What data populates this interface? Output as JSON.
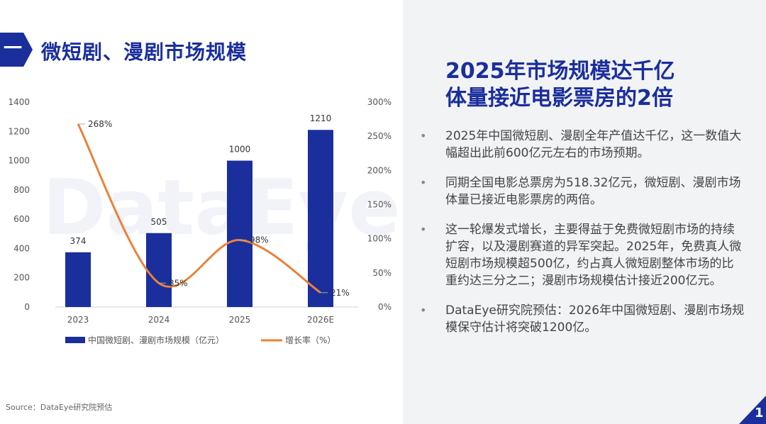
{
  "page": {
    "badge": "一",
    "title": "微短剧、漫剧市场规模",
    "source": "Source：DataEye研究院预估",
    "page_number": "1"
  },
  "watermark": "DataEye",
  "headline": {
    "line1": "2025年市场规模达千亿",
    "line2": "体量接近电影票房的2倍"
  },
  "bullets": [
    {
      "symbol": "•",
      "text": "2025年中国微短剧、漫剧全年产值达千亿，这一数值大幅超出此前600亿元左右的市场预期。"
    },
    {
      "symbol": "•",
      "text": "同期全国电影总票房为518.32亿元，微短剧、漫剧市场体量已接近电影票房的两倍。"
    },
    {
      "symbol": "•",
      "text": "这一轮爆发式增长，主要得益于免费微短剧市场的持续扩容，以及漫剧赛道的异军突起。2025年，免费真人微短剧市场规模超500亿，约占真人微短剧整体市场的比重约达三分之二；漫剧市场规模估计接近200亿元。"
    },
    {
      "symbol": "•",
      "text": "DataEye研究院预估：2026年中国微短剧、漫剧市场规模保守估计将突破1200亿。"
    }
  ],
  "colors": {
    "accent": "#1a2e9c",
    "bar": "#1a2e9c",
    "line": "#e8823a",
    "panel_bg": "#f2f3f5"
  },
  "chart_data": {
    "type": "bar",
    "categories": [
      "2023",
      "2024",
      "2025",
      "2026E"
    ],
    "series": [
      {
        "name": "中国微短剧、漫剧市场规模（亿元）",
        "type": "bar",
        "axis": "left",
        "values": [
          374,
          505,
          1000,
          1210
        ],
        "labels": [
          "374",
          "505",
          "1000",
          "1210"
        ]
      },
      {
        "name": "增长率（%）",
        "type": "line",
        "axis": "right",
        "values": [
          268,
          35,
          98,
          21
        ],
        "labels": [
          "268%",
          "35%",
          "98%",
          "21%"
        ]
      }
    ],
    "y_left": {
      "min": 0,
      "max": 1400,
      "ticks": [
        "0",
        "200",
        "400",
        "600",
        "800",
        "1000",
        "1200",
        "1400"
      ]
    },
    "y_right": {
      "min": 0,
      "max": 300,
      "ticks": [
        "0%",
        "50%",
        "100%",
        "150%",
        "200%",
        "250%",
        "300%"
      ]
    },
    "grid": false,
    "legend_position": "bottom"
  }
}
